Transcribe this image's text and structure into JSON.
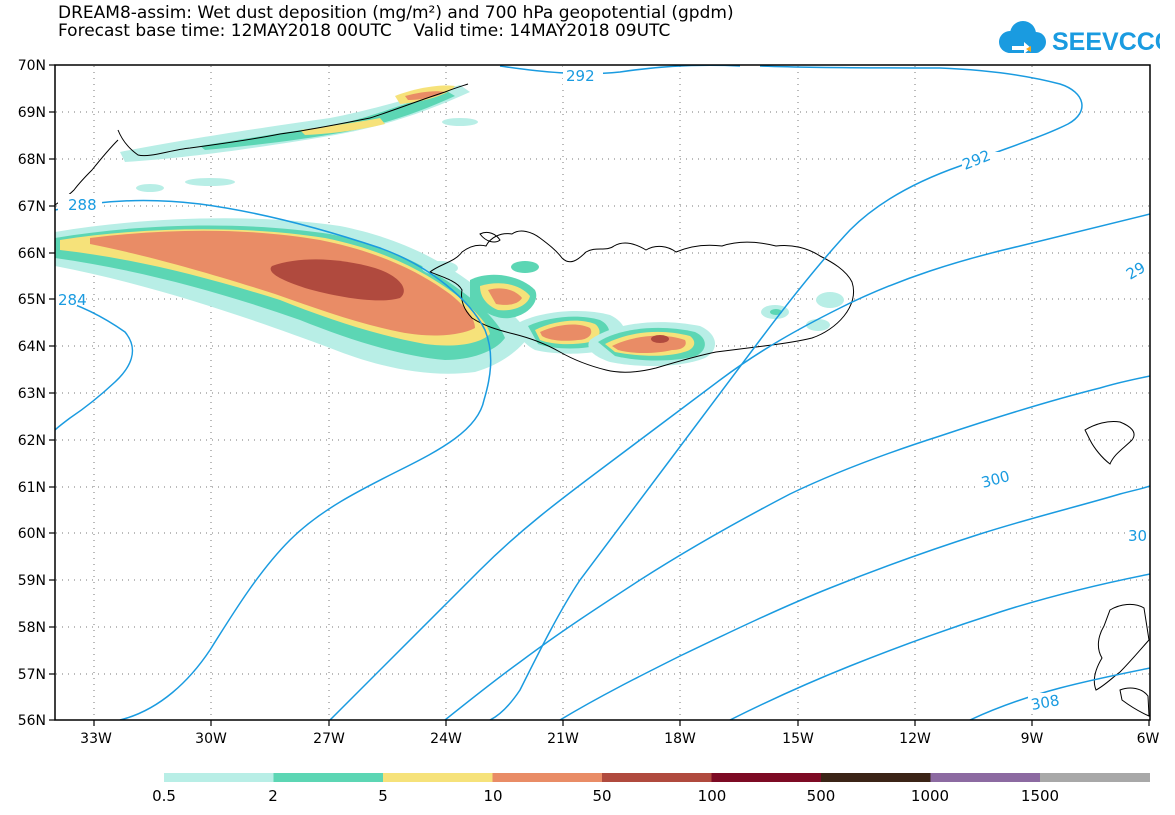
{
  "title": {
    "line1": "DREAM8-assim: Wet dust deposition (mg/m²) and 700 hPa geopotential (gpdm)",
    "line2": "Forecast base time: 12MAY2018 00UTC    Valid time: 14MAY2018 09UTC"
  },
  "logo": {
    "text": "SEEVCCC",
    "icon": "cloud-icon",
    "color": "#1a9be0"
  },
  "axes": {
    "lat_labels": [
      "70N",
      "69N",
      "68N",
      "67N",
      "66N",
      "65N",
      "64N",
      "63N",
      "62N",
      "61N",
      "60N",
      "59N",
      "58N",
      "57N",
      "56N"
    ],
    "lon_labels": [
      "33W",
      "30W",
      "27W",
      "24W",
      "21W",
      "18W",
      "15W",
      "12W",
      "9W",
      "6W"
    ]
  },
  "contours": {
    "color": "#1a9be0",
    "labels": [
      "292",
      "292",
      "288",
      "284",
      "29",
      "300",
      "30",
      "308"
    ]
  },
  "colorbar": {
    "colors": [
      "#b8eee6",
      "#5cd6b4",
      "#f6e27a",
      "#e98c66",
      "#b04a3e",
      "#7d0a24",
      "#3b2416",
      "#8c6aa1",
      "#a8a8a8"
    ],
    "labels": [
      "0.5",
      "2",
      "5",
      "10",
      "50",
      "100",
      "500",
      "1000",
      "1500"
    ]
  }
}
